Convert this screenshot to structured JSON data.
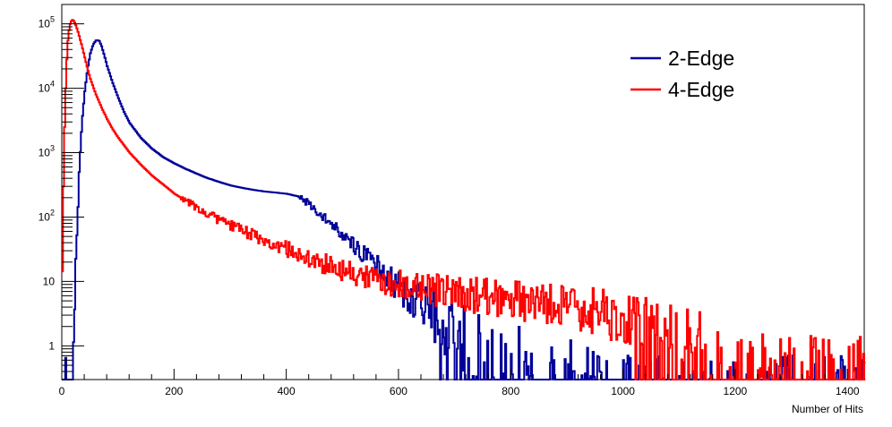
{
  "chart_data": {
    "type": "line",
    "title": "",
    "xlabel": "Number of Hits",
    "ylabel": "",
    "xlim": [
      0,
      1430
    ],
    "ylim": [
      0.3,
      200000
    ],
    "y_scale": "log",
    "grid": false,
    "legend_position": "top-right",
    "x_ticks": [
      0,
      200,
      400,
      600,
      800,
      1000,
      1200,
      1400
    ],
    "x_tick_labels": [
      "0",
      "200",
      "400",
      "600",
      "800",
      "1000",
      "1200",
      "1400"
    ],
    "y_ticks": [
      1,
      10,
      100,
      1000,
      10000,
      100000
    ],
    "y_tick_labels": [
      {
        "base": "1",
        "exp": ""
      },
      {
        "base": "10",
        "exp": ""
      },
      {
        "base": "10",
        "exp": "2"
      },
      {
        "base": "10",
        "exp": "3"
      },
      {
        "base": "10",
        "exp": "4"
      },
      {
        "base": "10",
        "exp": "5"
      }
    ],
    "series": [
      {
        "name": "2-Edge",
        "color": "#000099",
        "x": [
          0,
          18,
          22,
          26,
          30,
          35,
          40,
          45,
          50,
          55,
          60,
          63,
          66,
          70,
          75,
          80,
          90,
          100,
          110,
          120,
          140,
          160,
          180,
          200,
          220,
          240,
          260,
          280,
          300,
          320,
          340,
          360,
          380,
          400,
          420,
          440,
          450,
          460,
          470,
          480,
          490,
          500,
          520,
          540,
          560,
          580,
          600,
          620,
          640,
          660,
          680,
          700,
          720,
          740,
          760,
          780,
          800,
          820,
          840,
          860,
          880,
          900,
          920,
          940,
          960,
          980,
          1000
        ],
        "y": [
          0.3,
          0.3,
          5,
          50,
          500,
          3000,
          9000,
          20000,
          35000,
          48000,
          55000,
          56000,
          54000,
          45000,
          32000,
          22000,
          12000,
          7000,
          4300,
          2900,
          1700,
          1150,
          850,
          680,
          560,
          470,
          400,
          350,
          310,
          285,
          265,
          250,
          240,
          230,
          210,
          160,
          130,
          110,
          95,
          80,
          65,
          50,
          36,
          25,
          18,
          12,
          8,
          6,
          4,
          3,
          2.2,
          1.6,
          1.2,
          1,
          0.9,
          0.8,
          0.7,
          0.6,
          0.6,
          0.5,
          0.5,
          0.45,
          0.4,
          0.4,
          0.35,
          0.35,
          0.3
        ]
      },
      {
        "name": "4-Edge",
        "color": "#ff0000",
        "x": [
          0,
          2,
          4,
          6,
          8,
          10,
          12,
          14,
          16,
          18,
          20,
          22,
          24,
          26,
          28,
          30,
          35,
          40,
          45,
          50,
          60,
          70,
          80,
          90,
          100,
          120,
          140,
          160,
          180,
          200,
          220,
          240,
          260,
          280,
          300,
          320,
          340,
          360,
          380,
          400,
          420,
          440,
          460,
          480,
          500,
          520,
          540,
          560,
          580,
          600,
          620,
          640,
          660,
          680,
          700,
          740,
          780,
          820,
          860,
          900,
          940,
          980,
          1020,
          1060,
          1100,
          1140,
          1180
        ],
        "y": [
          20,
          300,
          2500,
          10000,
          28000,
          55000,
          80000,
          100000,
          110000,
          115000,
          112000,
          105000,
          95000,
          85000,
          75000,
          65000,
          45000,
          30000,
          20000,
          14000,
          8000,
          5000,
          3300,
          2300,
          1700,
          1000,
          650,
          440,
          320,
          230,
          180,
          140,
          110,
          90,
          75,
          62,
          52,
          45,
          38,
          32,
          27,
          23,
          20,
          17,
          15,
          13,
          12,
          11,
          10,
          9,
          8.5,
          8,
          7.5,
          7,
          6.5,
          6,
          5.5,
          5,
          4.5,
          4,
          3.5,
          3,
          2.5,
          2,
          1.5,
          1,
          0.5
        ]
      }
    ]
  }
}
